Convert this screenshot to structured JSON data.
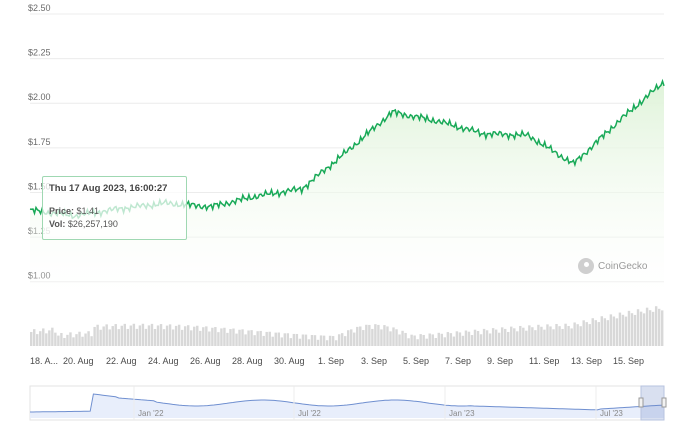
{
  "chart_data": {
    "type": "area",
    "series": [
      {
        "x": [
          "18. Aug",
          "20. Aug",
          "22. Aug",
          "24. Aug",
          "26. Aug",
          "28. Aug",
          "30. Aug",
          "1. Sep",
          "3. Sep",
          "5. Sep",
          "7. Sep",
          "9. Sep",
          "11. Sep",
          "13. Sep",
          "15. Sep"
        ],
        "values": [
          1.4,
          1.37,
          1.41,
          1.44,
          1.42,
          1.48,
          1.52,
          1.73,
          1.95,
          1.9,
          1.83,
          1.82,
          1.66,
          1.9,
          2.12
        ]
      }
    ],
    "y_ticks": [
      "$1.00",
      "$1.25",
      "$1.50",
      "$1.75",
      "$2.00",
      "$2.25",
      "$2.50"
    ],
    "y_tick_values": [
      1.0,
      1.25,
      1.5,
      1.75,
      2.0,
      2.25,
      2.5
    ],
    "ylim": [
      0.92,
      2.5
    ],
    "x_ticks": [
      "18. A...",
      "20. Aug",
      "22. Aug",
      "24. Aug",
      "26. Aug",
      "28. Aug",
      "30. Aug",
      "1. Sep",
      "3. Sep",
      "5. Sep",
      "7. Sep",
      "9. Sep",
      "11. Sep",
      "13. Sep",
      "15. Sep"
    ],
    "navigator_ticks": [
      "Jan '22",
      "Jul '22",
      "Jan '23",
      "Jul '23"
    ],
    "grid": true,
    "colors": {
      "line": "#18a957",
      "fill": "#dff3d9",
      "volume": "#d8d8d8",
      "navigator": "#6f8fd0"
    }
  },
  "tooltip": {
    "date": "Thu 17 Aug 2023, 16:00:27",
    "price_label": "Price:",
    "price_value": "$1.41",
    "vol_label": "Vol:",
    "vol_value": "$26,257,190"
  },
  "watermark": "CoinGecko"
}
